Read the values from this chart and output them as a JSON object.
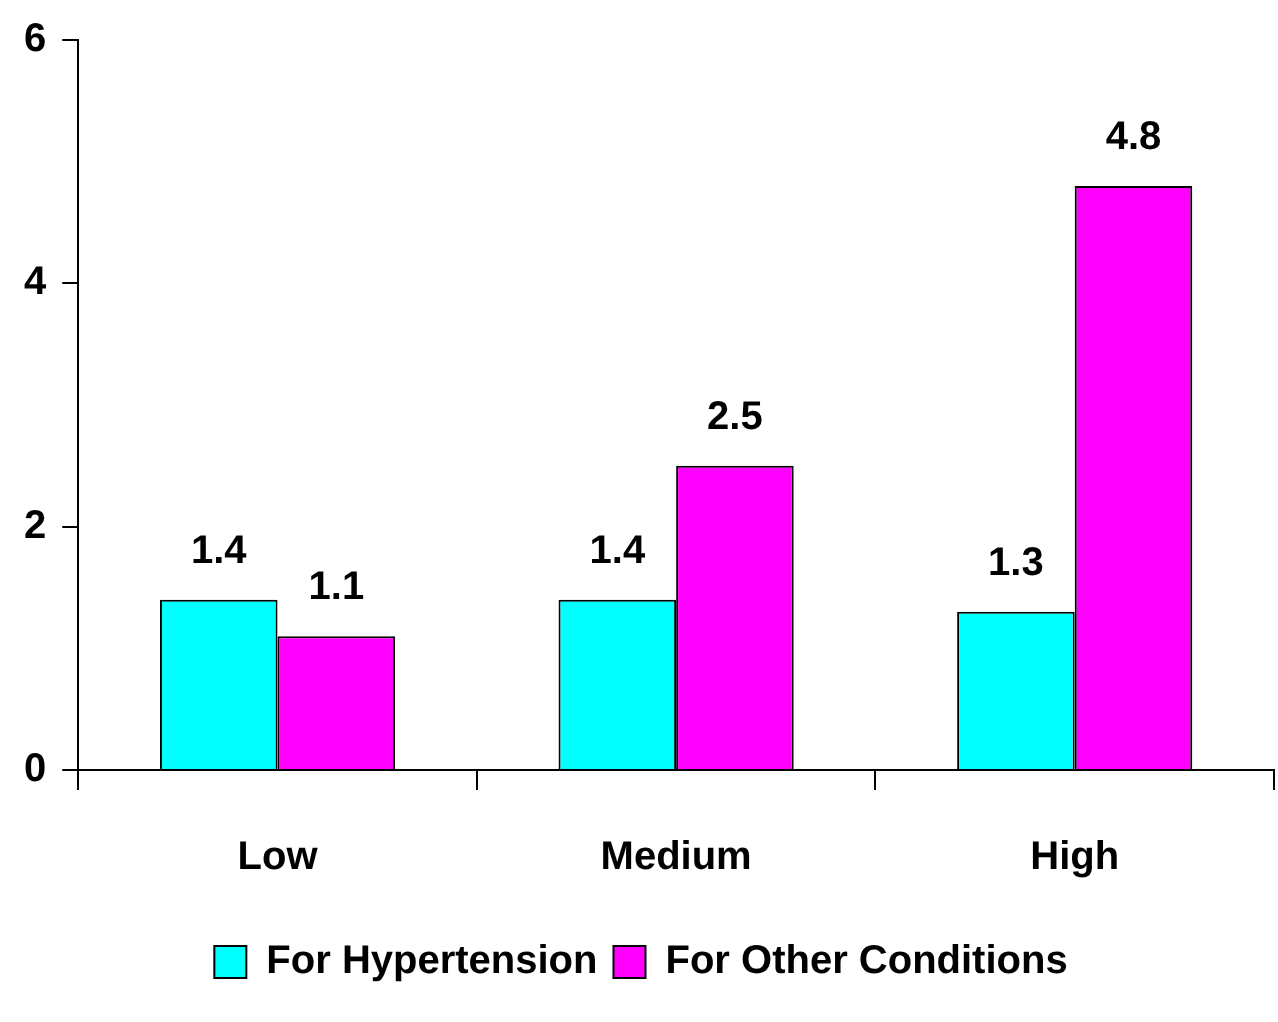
{
  "chart_data": {
    "type": "bar",
    "categories": [
      "Low",
      "Medium",
      "High"
    ],
    "series": [
      {
        "name": "For Hypertension",
        "color": "#00ffff",
        "values": [
          1.4,
          1.4,
          1.3
        ]
      },
      {
        "name": "For Other Conditions",
        "color": "#ff00ff",
        "values": [
          1.1,
          2.5,
          4.8
        ]
      }
    ],
    "ylim": [
      0,
      6
    ],
    "yticks": [
      0,
      2,
      4,
      6
    ],
    "grid": false,
    "legend": "bottom",
    "data_labels": true
  }
}
